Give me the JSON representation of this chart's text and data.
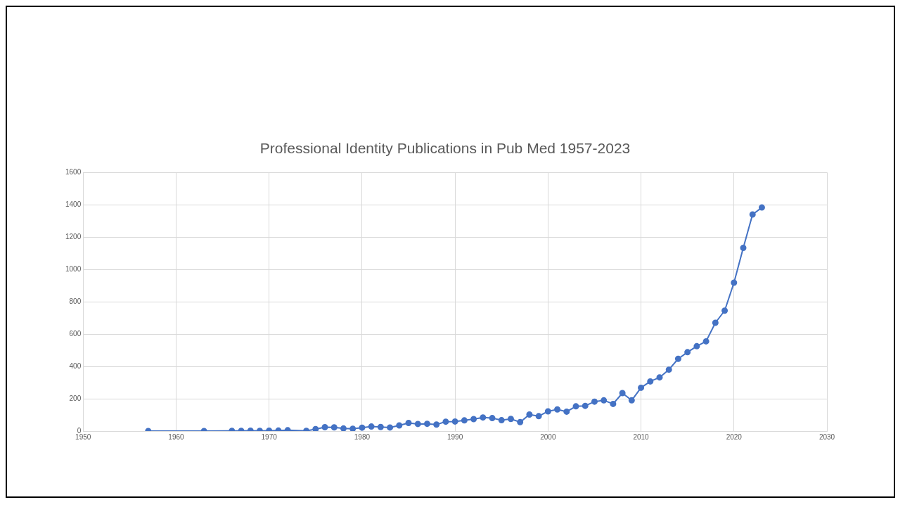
{
  "chart_data": {
    "type": "line",
    "title": "Professional Identity Publications in Pub Med 1957-2023",
    "x": [
      1957,
      1963,
      1966,
      1967,
      1968,
      1969,
      1970,
      1971,
      1972,
      1974,
      1975,
      1976,
      1977,
      1978,
      1979,
      1980,
      1981,
      1982,
      1983,
      1984,
      1985,
      1986,
      1987,
      1988,
      1989,
      1990,
      1991,
      1992,
      1993,
      1994,
      1995,
      1996,
      1997,
      1998,
      1999,
      2000,
      2001,
      2002,
      2003,
      2004,
      2005,
      2006,
      2007,
      2008,
      2009,
      2010,
      2011,
      2012,
      2013,
      2014,
      2015,
      2016,
      2017,
      2018,
      2019,
      2020,
      2021,
      2022,
      2023
    ],
    "series": [
      {
        "color": "#4472c4",
        "values": [
          0,
          0,
          1,
          1,
          2,
          1,
          2,
          3,
          5,
          1,
          12,
          24,
          23,
          16,
          14,
          21,
          28,
          25,
          22,
          35,
          50,
          44,
          45,
          40,
          58,
          59,
          66,
          74,
          84,
          80,
          67,
          75,
          55,
          102,
          92,
          122,
          134,
          120,
          153,
          156,
          182,
          190,
          168,
          235,
          190,
          268,
          307,
          332,
          380,
          447,
          488,
          525,
          555,
          670,
          745,
          918,
          1133,
          1340,
          1383
        ]
      }
    ],
    "xlim": [
      1950,
      2030
    ],
    "xticks": [
      1950,
      1960,
      1970,
      1980,
      1990,
      2000,
      2010,
      2020,
      2030
    ],
    "ylim": [
      0,
      1600
    ],
    "yticks": [
      0,
      200,
      400,
      600,
      800,
      1000,
      1200,
      1400,
      1600
    ],
    "grid": true,
    "legend": false,
    "marker": "circle",
    "line_style": "solid"
  }
}
